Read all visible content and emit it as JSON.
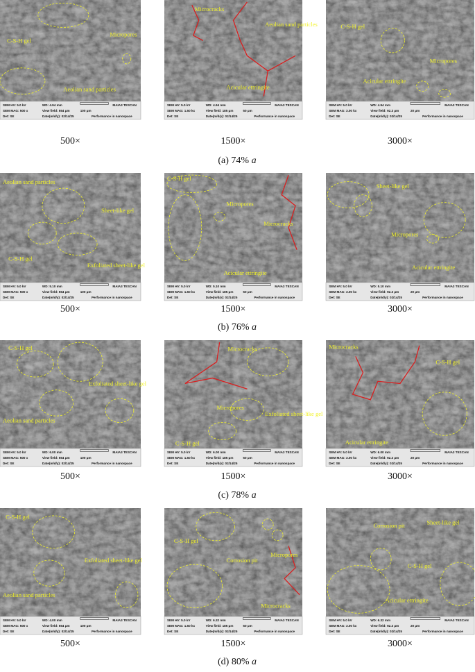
{
  "figure": {
    "rows": [
      {
        "caption": "(a) 74%",
        "variable": "a",
        "panels": [
          {
            "magnification": "500×",
            "annotations": [
              "C-S-H gel",
              "Micropores",
              "Aeolian sand particles"
            ],
            "info": {
              "hv": "SEM HV: 5.0 kV",
              "wd": "WD: 4.94 mm",
              "vendor": "MAIA3 TESCAN",
              "mag": "SEM MAG: 500 x",
              "view_field": "View field: 554 μm",
              "scale": "100 μm",
              "det": "Det: SE",
              "date": "Date(m/d/y): 02/14/25",
              "tagline": "Performance in nanospace"
            }
          },
          {
            "magnification": "1500×",
            "annotations": [
              "Microcracks",
              "Aeolian sand particles",
              "Acicular ettringite"
            ],
            "info": {
              "hv": "SEM HV: 5.0 kV",
              "wd": "WD: 4.94 mm",
              "vendor": "MAIA3 TESCAN",
              "mag": "SEM MAG: 1.50 kx",
              "view_field": "View field: 185 μm",
              "scale": "50 μm",
              "det": "Det: SE",
              "date": "Date(m/d/y): 02/14/25",
              "tagline": "Performance in nanospace"
            }
          },
          {
            "magnification": "3000×",
            "annotations": [
              "C-S-H gel",
              "Micropores",
              "Acicular ettringite"
            ],
            "info": {
              "hv": "SEM HV: 5.0 kV",
              "wd": "WD: 4.94 mm",
              "vendor": "MAIA3 TESCAN",
              "mag": "SEM MAG: 3.00 kx",
              "view_field": "View field: 92.3 μm",
              "scale": "20 μm",
              "det": "Det: SE",
              "date": "Date(m/d/y): 02/14/25",
              "tagline": "Performance in nanospace"
            }
          }
        ]
      },
      {
        "caption": "(b) 76%",
        "variable": "a",
        "panels": [
          {
            "magnification": "500×",
            "annotations": [
              "Aeolian sand particles",
              "Sheet-like gel",
              "C-S-H gel",
              "Exfoliated sheet-like gel"
            ],
            "info": {
              "hv": "SEM HV: 5.0 kV",
              "wd": "WD: 5.10 mm",
              "vendor": "MAIA3 TESCAN",
              "mag": "SEM MAG: 500 x",
              "view_field": "View field: 554 μm",
              "scale": "100 μm",
              "det": "Det: SE",
              "date": "Date(m/d/y): 02/14/25",
              "tagline": "Performance in nanospace"
            }
          },
          {
            "magnification": "1500×",
            "annotations": [
              "C-S-H gel",
              "Micropores",
              "Microcracks",
              "Acicular ettringite"
            ],
            "info": {
              "hv": "SEM HV: 5.0 kV",
              "wd": "WD: 5.10 mm",
              "vendor": "MAIA3 TESCAN",
              "mag": "SEM MAG: 1.50 kx",
              "view_field": "View field: 185 μm",
              "scale": "50 μm",
              "det": "Det: SE",
              "date": "Date(m/d/y): 02/14/25",
              "tagline": "Performance in nanospace"
            }
          },
          {
            "magnification": "3000×",
            "annotations": [
              "Sheet-like gel",
              "Micropores",
              "Acicular ettringite"
            ],
            "info": {
              "hv": "SEM HV: 5.0 kV",
              "wd": "WD: 5.10 mm",
              "vendor": "MAIA3 TESCAN",
              "mag": "SEM MAG: 3.00 kx",
              "view_field": "View field: 92.3 μm",
              "scale": "20 μm",
              "det": "Det: SE",
              "date": "Date(m/d/y): 02/14/25",
              "tagline": "Performance in nanospace"
            }
          }
        ]
      },
      {
        "caption": "(c) 78%",
        "variable": "a",
        "panels": [
          {
            "magnification": "500×",
            "annotations": [
              "C-S-H gel",
              "Exfoliated sheet-like gel",
              "Aeolian sand particles"
            ],
            "info": {
              "hv": "SEM HV: 5.0 kV",
              "wd": "WD: 6.00 mm",
              "vendor": "MAIA3 TESCAN",
              "mag": "SEM MAG: 500 x",
              "view_field": "View field: 554 μm",
              "scale": "100 μm",
              "det": "Det: SE",
              "date": "Date(m/d/y): 02/14/25",
              "tagline": "Performance in nanospace"
            }
          },
          {
            "magnification": "1500×",
            "annotations": [
              "Microcracks",
              "Micropores",
              "Exfoliated sheet-like gel",
              "C-S-H gel"
            ],
            "info": {
              "hv": "SEM HV: 5.0 kV",
              "wd": "WD: 6.00 mm",
              "vendor": "MAIA3 TESCAN",
              "mag": "SEM MAG: 1.50 kx",
              "view_field": "View field: 185 μm",
              "scale": "50 μm",
              "det": "Det: SE",
              "date": "Date(m/d/y): 02/14/25",
              "tagline": "Performance in nanospace"
            }
          },
          {
            "magnification": "3000×",
            "annotations": [
              "Microcracks",
              "C-S-H gel",
              "Acicular ettringite"
            ],
            "info": {
              "hv": "SEM HV: 5.0 kV",
              "wd": "WD: 6.00 mm",
              "vendor": "MAIA3 TESCAN",
              "mag": "SEM MAG: 3.00 kx",
              "view_field": "View field: 92.3 μm",
              "scale": "20 μm",
              "det": "Det: SE",
              "date": "Date(m/d/y): 02/14/25",
              "tagline": "Performance in nanospace"
            }
          }
        ]
      },
      {
        "caption": "(d) 80%",
        "variable": "a",
        "panels": [
          {
            "magnification": "500×",
            "annotations": [
              "C-S-H gel",
              "Exfoliated sheet-like gel",
              "Aeolian sand particles"
            ],
            "info": {
              "hv": "SEM HV: 5.0 kV",
              "wd": "WD: 4.00 mm",
              "vendor": "MAIA3 TESCAN",
              "mag": "SEM MAG: 500 x",
              "view_field": "View field: 554 μm",
              "scale": "100 μm",
              "det": "Det: SE",
              "date": "Date(m/d/y): 02/14/25",
              "tagline": "Performance in nanospace"
            }
          },
          {
            "magnification": "1500×",
            "annotations": [
              "C-S-H gel",
              "Corrosion pit",
              "Micropores",
              "Microcracks"
            ],
            "info": {
              "hv": "SEM HV: 5.0 kV",
              "wd": "WD: 6.32 mm",
              "vendor": "MAIA3 TESCAN",
              "mag": "SEM MAG: 1.50 kx",
              "view_field": "View field: 185 μm",
              "scale": "50 μm",
              "det": "Det: SE",
              "date": "Date(m/d/y): 02/14/25",
              "tagline": "Performance in nanospace"
            }
          },
          {
            "magnification": "3000×",
            "annotations": [
              "Corrosion pit",
              "Sheet-like gel",
              "C-S-H gel",
              "Acicular ettringite"
            ],
            "info": {
              "hv": "SEM HV: 5.0 kV",
              "wd": "WD: 6.32 mm",
              "vendor": "MAIA3 TESCAN",
              "mag": "SEM MAG: 3.00 kx",
              "view_field": "View field: 92.3 μm",
              "scale": "20 μm",
              "det": "Det: SE",
              "date": "Date(m/d/y): 02/14/25",
              "tagline": "Performance in nanospace"
            }
          }
        ]
      }
    ]
  }
}
